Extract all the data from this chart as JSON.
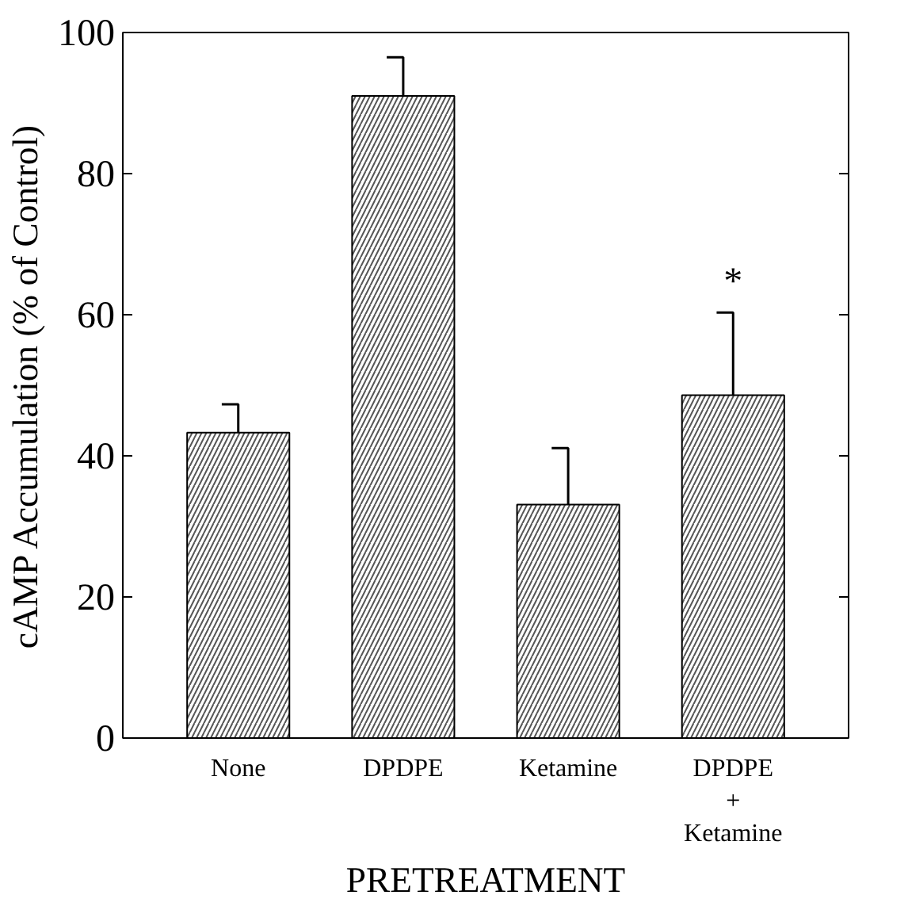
{
  "chart_data": {
    "type": "bar",
    "xlabel": "PRETREATMENT",
    "ylabel": "cAMP Accumulation (% of Control)",
    "categories": [
      "None",
      "DPDPE",
      "Ketamine",
      "DPDPE\n+\nKetamine"
    ],
    "values": [
      43.3,
      91,
      33.1,
      48.6
    ],
    "errors": [
      4,
      5.5,
      8,
      11.7
    ],
    "color": "#ffffff",
    "ylim": [
      0,
      100
    ],
    "yticks": [
      0,
      20,
      40,
      60,
      80,
      100
    ],
    "grid": false,
    "annotations": [
      "*"
    ]
  }
}
